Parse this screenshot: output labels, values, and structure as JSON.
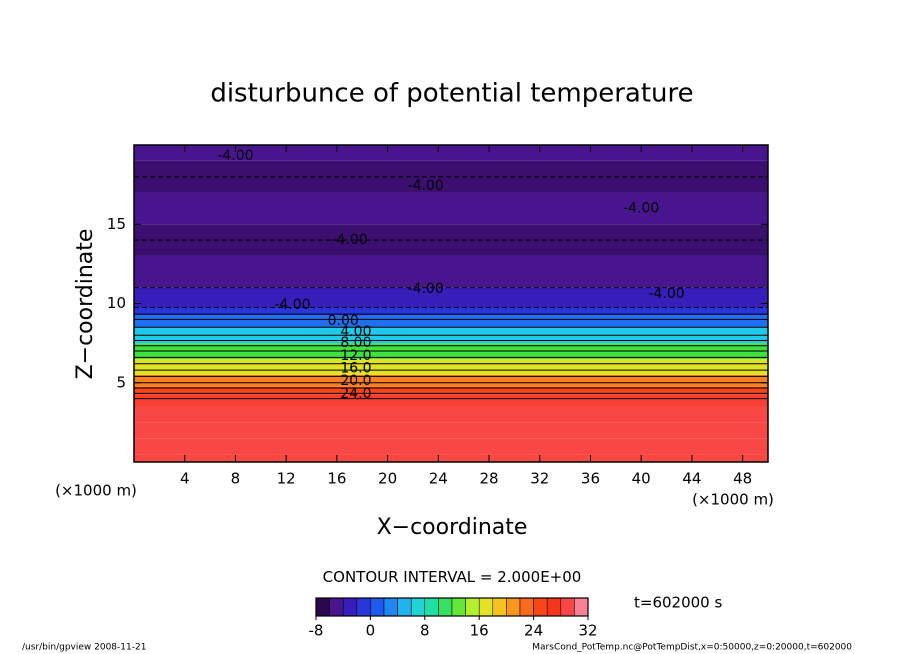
{
  "chart_data": {
    "type": "contour",
    "title": "disturbunce of potential temperature",
    "xlabel": "X−coordinate",
    "ylabel": "Z−coordinate",
    "xunit": "(×1000 m)",
    "yunit": "(×1000 m)",
    "xlim": [
      0,
      50
    ],
    "ylim": [
      0,
      20
    ],
    "xticks": [
      4,
      8,
      12,
      16,
      20,
      24,
      28,
      32,
      36,
      40,
      44,
      48
    ],
    "yticks": [
      5,
      10,
      15
    ],
    "z": [
      0,
      1,
      2,
      3,
      4,
      4.5,
      5,
      6,
      7,
      8,
      9,
      9.5,
      10,
      12,
      14,
      16,
      18,
      20
    ],
    "values": [
      29,
      29,
      29,
      29,
      28,
      25,
      22,
      17,
      12,
      6,
      2,
      -1,
      -3,
      -5,
      -6,
      -5,
      -6,
      -5
    ],
    "contour_labels": [
      {
        "value": -4,
        "label": "-4.00",
        "x": 8,
        "z": 19.3
      },
      {
        "value": -4,
        "label": "-4.00",
        "x": 23,
        "z": 17.4
      },
      {
        "value": -4,
        "label": "-4.00",
        "x": 40,
        "z": 16.0
      },
      {
        "value": -4,
        "label": "-4.00",
        "x": 17,
        "z": 14.0
      },
      {
        "value": -4,
        "label": "-4.00",
        "x": 23,
        "z": 10.9
      },
      {
        "value": -4,
        "label": "-4.00",
        "x": 42,
        "z": 10.6
      },
      {
        "value": -4,
        "label": "-4.00",
        "x": 12.5,
        "z": 9.9
      },
      {
        "value": 0,
        "label": "0.00",
        "x": 16.5,
        "z": 8.9
      },
      {
        "value": 4,
        "label": "4.00",
        "x": 17.5,
        "z": 8.2
      },
      {
        "value": 8,
        "label": "8.00",
        "x": 17.5,
        "z": 7.5
      },
      {
        "value": 12,
        "label": "12.0",
        "x": 17.5,
        "z": 6.7
      },
      {
        "value": 16,
        "label": "16.0",
        "x": 17.5,
        "z": 5.9
      },
      {
        "value": 20,
        "label": "20.0",
        "x": 17.5,
        "z": 5.1
      },
      {
        "value": 24,
        "label": "24.0",
        "x": 17.5,
        "z": 4.3
      }
    ],
    "contour_interval_title": "CONTOUR INTERVAL =",
    "contour_interval": {
      "value": 2,
      "label": "2.000E+00"
    },
    "clim": [
      -8,
      32
    ],
    "cticks": [
      -8,
      0,
      8,
      16,
      24,
      32
    ],
    "colormap": [
      "#180030",
      "#4a148c",
      "#3020c8",
      "#1e50f0",
      "#2090f0",
      "#20d0e8",
      "#20e0a0",
      "#40e040",
      "#b0f030",
      "#f0e020",
      "#f8a020",
      "#f86020",
      "#f83010",
      "#f84848",
      "#f8a0c0"
    ],
    "time_label": "t=602000 s",
    "footer_left": "/usr/bin/gpview   2008-11-21",
    "footer_right": "MarsCond_PotTemp.nc@PotTempDist,x=0:50000,z=0:20000,t=602000"
  }
}
